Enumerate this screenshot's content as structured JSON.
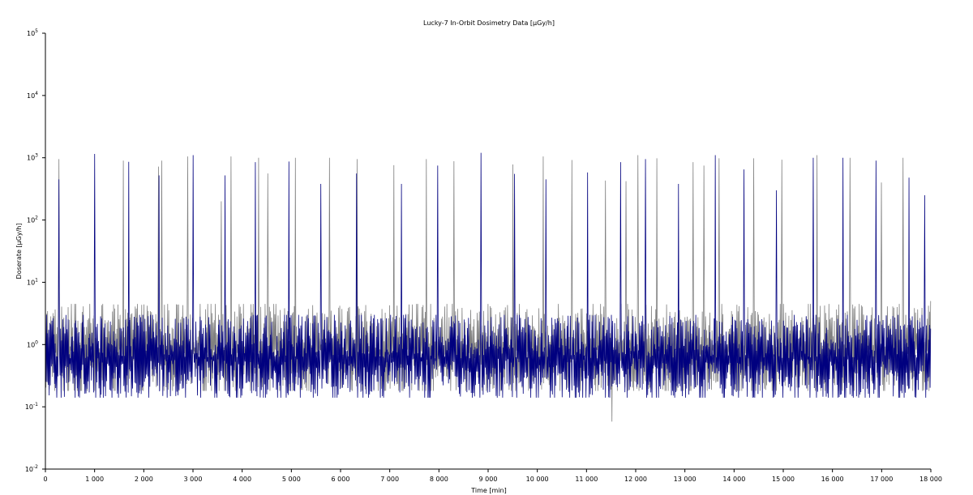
{
  "chart_data": {
    "type": "line",
    "title": "Lucky-7 In-Orbit Dosimetry Data [µGy/h]",
    "xlabel": "Time [min]",
    "ylabel": "Doserate [µGy/h]",
    "xlim": [
      0,
      18000
    ],
    "ylim": [
      0.01,
      100000
    ],
    "yscale": "log",
    "grid": false,
    "xticks": [
      0,
      1000,
      2000,
      3000,
      4000,
      5000,
      6000,
      7000,
      8000,
      9000,
      10000,
      11000,
      12000,
      13000,
      14000,
      15000,
      16000,
      17000,
      18000
    ],
    "xtick_labels": [
      "0",
      "1 000",
      "2 000",
      "3 000",
      "4 000",
      "5 000",
      "6 000",
      "7 000",
      "8 000",
      "9 000",
      "10 000",
      "11 000",
      "12 000",
      "13 000",
      "14 000",
      "15 000",
      "16 000",
      "17 000",
      "18 000"
    ],
    "yticks": [
      0.01,
      0.1,
      1,
      10,
      100,
      1000,
      10000,
      100000
    ],
    "ytick_labels": [
      {
        "base": "10",
        "exp": "-2"
      },
      {
        "base": "10",
        "exp": "-1"
      },
      {
        "base": "10",
        "exp": "0"
      },
      {
        "base": "10",
        "exp": "1"
      },
      {
        "base": "10",
        "exp": "2"
      },
      {
        "base": "10",
        "exp": "3"
      },
      {
        "base": "10",
        "exp": "4"
      },
      {
        "base": "10",
        "exp": "5"
      }
    ],
    "series": [
      {
        "color": "#808080",
        "baseline_range": [
          0.18,
          4.5
        ],
        "peaks": [
          {
            "x": 270,
            "y": 950
          },
          {
            "x": 1580,
            "y": 900
          },
          {
            "x": 2300,
            "y": 720
          },
          {
            "x": 2370,
            "y": 900
          },
          {
            "x": 2890,
            "y": 1050
          },
          {
            "x": 3580,
            "y": 200
          },
          {
            "x": 3770,
            "y": 1050
          },
          {
            "x": 4330,
            "y": 1000
          },
          {
            "x": 4520,
            "y": 560
          },
          {
            "x": 5080,
            "y": 1000
          },
          {
            "x": 5770,
            "y": 1000
          },
          {
            "x": 6340,
            "y": 950
          },
          {
            "x": 7080,
            "y": 760
          },
          {
            "x": 7740,
            "y": 950
          },
          {
            "x": 8310,
            "y": 880
          },
          {
            "x": 9500,
            "y": 780
          },
          {
            "x": 10120,
            "y": 1050
          },
          {
            "x": 10700,
            "y": 920
          },
          {
            "x": 11390,
            "y": 430
          },
          {
            "x": 11520,
            "y": 0.058
          },
          {
            "x": 11800,
            "y": 420
          },
          {
            "x": 12050,
            "y": 1100
          },
          {
            "x": 12430,
            "y": 980
          },
          {
            "x": 13170,
            "y": 850
          },
          {
            "x": 13390,
            "y": 750
          },
          {
            "x": 13700,
            "y": 980
          },
          {
            "x": 14400,
            "y": 980
          },
          {
            "x": 14970,
            "y": 930
          },
          {
            "x": 15690,
            "y": 1100
          },
          {
            "x": 16360,
            "y": 1000
          },
          {
            "x": 17000,
            "y": 400
          },
          {
            "x": 17440,
            "y": 1000
          },
          {
            "x": 18000,
            "y": 5
          }
        ]
      },
      {
        "color": "#00007f",
        "baseline_range": [
          0.14,
          3.0
        ],
        "peaks": [
          {
            "x": 270,
            "y": 450
          },
          {
            "x": 1000,
            "y": 1150
          },
          {
            "x": 1690,
            "y": 860
          },
          {
            "x": 2310,
            "y": 520
          },
          {
            "x": 3000,
            "y": 1100
          },
          {
            "x": 3650,
            "y": 520
          },
          {
            "x": 4270,
            "y": 850
          },
          {
            "x": 4950,
            "y": 870
          },
          {
            "x": 5600,
            "y": 380
          },
          {
            "x": 6330,
            "y": 560
          },
          {
            "x": 7240,
            "y": 380
          },
          {
            "x": 7970,
            "y": 750
          },
          {
            "x": 8860,
            "y": 1200
          },
          {
            "x": 9540,
            "y": 550
          },
          {
            "x": 10180,
            "y": 450
          },
          {
            "x": 11020,
            "y": 580
          },
          {
            "x": 11690,
            "y": 850
          },
          {
            "x": 12200,
            "y": 950
          },
          {
            "x": 12870,
            "y": 380
          },
          {
            "x": 13620,
            "y": 1100
          },
          {
            "x": 14200,
            "y": 650
          },
          {
            "x": 14860,
            "y": 300
          },
          {
            "x": 15610,
            "y": 1000
          },
          {
            "x": 16210,
            "y": 1000
          },
          {
            "x": 16880,
            "y": 900
          },
          {
            "x": 17560,
            "y": 480
          },
          {
            "x": 17880,
            "y": 250
          }
        ]
      }
    ]
  }
}
